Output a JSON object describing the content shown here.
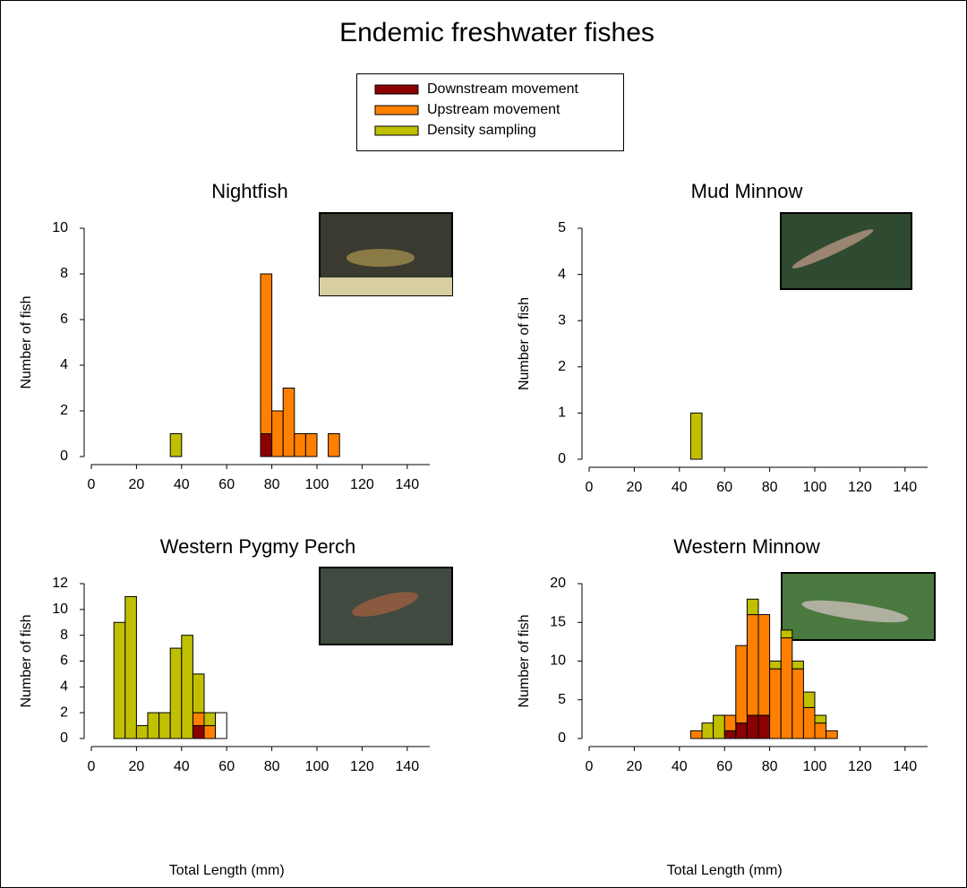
{
  "title": "Endemic freshwater fishes",
  "chart_data": [
    {
      "type": "histogram",
      "title": "Nightfish",
      "y_label": "Number of fish",
      "bins": [
        35,
        40,
        45,
        50,
        55,
        60,
        65,
        70,
        75,
        80,
        85,
        90,
        95,
        100,
        105,
        110
      ],
      "series": [
        {
          "name": "Downstream movement",
          "color": "#8b0000",
          "values": [
            0,
            0,
            0,
            0,
            0,
            0,
            0,
            0,
            1,
            0,
            0,
            0,
            0,
            0,
            0
          ]
        },
        {
          "name": "Upstream movement",
          "color": "#ff8000",
          "values": [
            0,
            0,
            0,
            0,
            0,
            0,
            0,
            0,
            7,
            2,
            3,
            1,
            1,
            0,
            1
          ]
        },
        {
          "name": "Density sampling",
          "color": "#c0c000",
          "values": [
            1,
            0,
            0,
            0,
            0,
            0,
            0,
            0,
            0,
            0,
            0,
            0,
            0,
            0,
            0
          ]
        }
      ],
      "xlim": [
        0,
        150
      ],
      "xticks": [
        0,
        20,
        40,
        60,
        80,
        100,
        120,
        140
      ],
      "ylim": [
        0,
        10
      ],
      "yticks": [
        0,
        2,
        4,
        6,
        8,
        10
      ]
    },
    {
      "type": "histogram",
      "title": "Mud Minnow",
      "y_label": "Number of fish",
      "bins": [
        45,
        50
      ],
      "series": [
        {
          "name": "Downstream movement",
          "color": "#8b0000",
          "values": [
            0
          ]
        },
        {
          "name": "Upstream movement",
          "color": "#ff8000",
          "values": [
            0
          ]
        },
        {
          "name": "Density sampling",
          "color": "#c0c000",
          "values": [
            1
          ]
        }
      ],
      "xlim": [
        0,
        150
      ],
      "xticks": [
        0,
        20,
        40,
        60,
        80,
        100,
        120,
        140
      ],
      "ylim": [
        0,
        5
      ],
      "yticks": [
        0,
        1,
        2,
        3,
        4,
        5
      ]
    },
    {
      "type": "histogram",
      "title": "Western Pygmy Perch",
      "y_label": "Number of fish",
      "x_label": "Total Length (mm)",
      "bins": [
        10,
        15,
        20,
        25,
        30,
        35,
        40,
        45,
        50,
        55,
        60
      ],
      "series": [
        {
          "name": "Downstream movement",
          "color": "#8b0000",
          "values": [
            0,
            0,
            0,
            0,
            0,
            0,
            0,
            1,
            0,
            0
          ]
        },
        {
          "name": "Upstream movement",
          "color": "#ff8000",
          "values": [
            0,
            0,
            0,
            0,
            0,
            0,
            0,
            1,
            1,
            0
          ]
        },
        {
          "name": "Density sampling",
          "color": "#c0c000",
          "values": [
            9,
            11,
            1,
            2,
            2,
            7,
            8,
            3,
            1,
            0
          ]
        },
        {
          "color": "#ffffff",
          "values": [
            0,
            0,
            0,
            0,
            0,
            0,
            0,
            0,
            0,
            2
          ]
        }
      ],
      "xlim": [
        0,
        150
      ],
      "xticks": [
        0,
        20,
        40,
        60,
        80,
        100,
        120,
        140
      ],
      "ylim": [
        0,
        12
      ],
      "yticks": [
        0,
        2,
        4,
        6,
        8,
        10,
        12
      ]
    },
    {
      "type": "histogram",
      "title": "Western Minnow",
      "y_label": "Number of fish",
      "x_label": "Total Length (mm)",
      "bins": [
        45,
        50,
        55,
        60,
        65,
        70,
        75,
        80,
        85,
        90,
        95,
        100,
        105,
        110
      ],
      "series": [
        {
          "name": "Downstream movement",
          "color": "#8b0000",
          "values": [
            0,
            0,
            0,
            1,
            2,
            3,
            3,
            0,
            0,
            0,
            0,
            0,
            0
          ]
        },
        {
          "name": "Upstream movement",
          "color": "#ff8000",
          "values": [
            1,
            0,
            0,
            2,
            10,
            13,
            13,
            9,
            13,
            9,
            4,
            2,
            1
          ]
        },
        {
          "name": "Density sampling",
          "color": "#c0c000",
          "values": [
            0,
            2,
            3,
            0,
            0,
            2,
            0,
            1,
            1,
            1,
            2,
            1,
            0
          ]
        }
      ],
      "xlim": [
        0,
        150
      ],
      "xticks": [
        0,
        20,
        40,
        60,
        80,
        100,
        120,
        140
      ],
      "ylim": [
        0,
        20
      ],
      "yticks": [
        0,
        5,
        10,
        15,
        20
      ]
    }
  ]
}
